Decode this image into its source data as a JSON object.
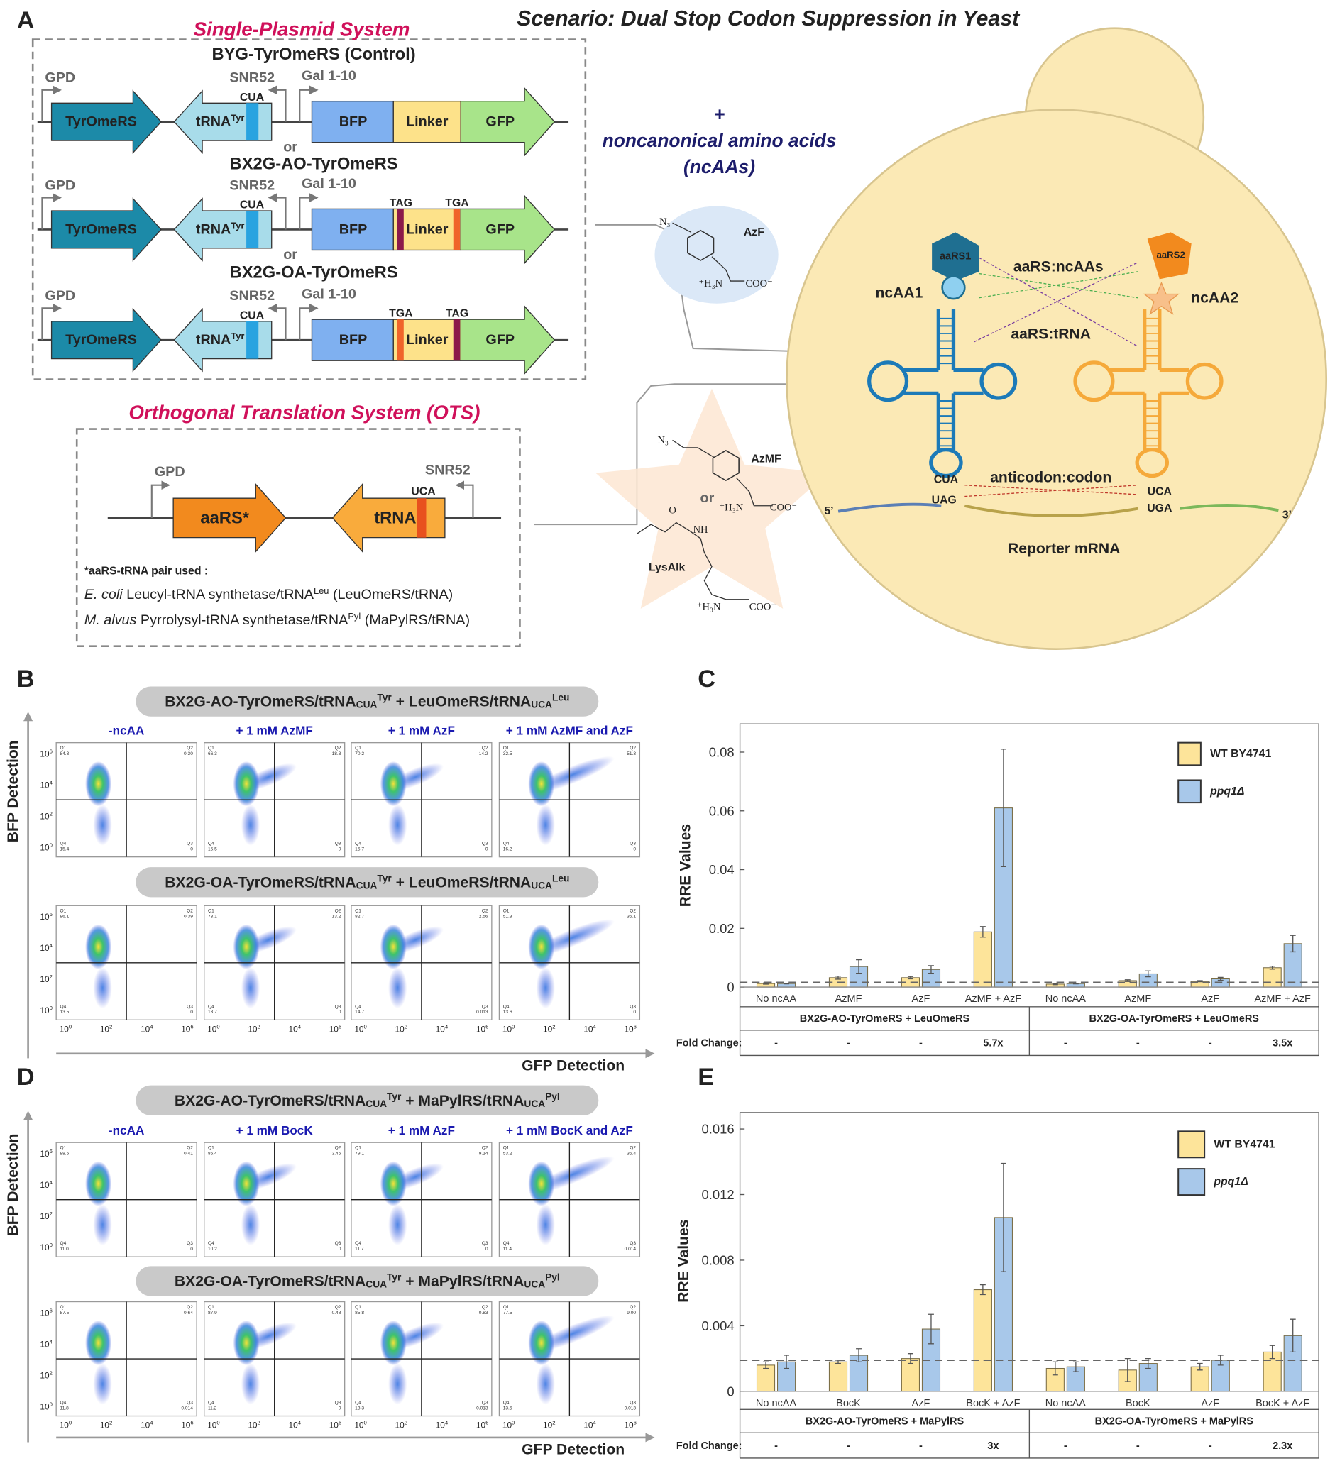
{
  "panel_a": {
    "letter": "A",
    "scenario": "Scenario: Dual Stop Codon Suppression in Yeast",
    "single_plasmid": {
      "title": "Single-Plasmid System",
      "constructs": [
        {
          "name": "BYG-TyrOmeRS (Control)",
          "codons": []
        },
        {
          "name": "BX2G-AO-TyrOmeRS",
          "codons": [
            {
              "label": "TAG",
              "color": "#8b1a4a"
            },
            {
              "label": "TGA",
              "color": "#f0642a"
            }
          ]
        },
        {
          "name": "BX2G-OA-TyrOmeRS",
          "codons": [
            {
              "label": "TGA",
              "color": "#f0642a"
            },
            {
              "label": "TAG",
              "color": "#8b1a4a"
            }
          ]
        }
      ],
      "or": "or",
      "promoters": [
        "GPD",
        "SNR52",
        "Gal 1-10"
      ],
      "genes": {
        "aars": "TyrOmeRS",
        "trna": "tRNA",
        "trna_sup": "Tyr",
        "anticodon": "CUA",
        "bfp": "BFP",
        "linker": "Linker",
        "gfp": "GFP"
      }
    },
    "ncaa": {
      "plus": "+",
      "line1": "noncanonical amino acids",
      "line2": "(ncAAs)",
      "azf": "AzF",
      "azmf": "AzMF",
      "or": "or",
      "lysalk": "LysAlk",
      "n3": "N₃",
      "amine": "⁺H₃N",
      "carboxyl": "COO⁻",
      "o": "O",
      "nh": "NH"
    },
    "ots": {
      "title": "Orthogonal Translation System (OTS)",
      "promoter1": "GPD",
      "promoter2": "SNR52",
      "aars": "aaRS*",
      "trna": "tRNA",
      "anticodon": "UCA",
      "note": "*aaRS-tRNA pair used :",
      "pairs": [
        {
          "species": "E. coli",
          "text": " Leucyl-tRNA synthetase/tRNA",
          "sup": "Leu",
          "tail": " (LeuOmeRS/tRNA)"
        },
        {
          "species": "M. alvus",
          "text": " Pyrrolysyl-tRNA synthetase/tRNA",
          "sup": "Pyl",
          "tail": " (MaPylRS/tRNA)"
        }
      ]
    },
    "cell": {
      "aars1": "aaRS1",
      "aars2": "aaRS2",
      "ncaa1": "ncAA1",
      "ncaa2": "ncAA2",
      "aars_ncaas": "aaRS:ncAAs",
      "aars_trna": "aaRS:tRNA",
      "anticodon_codon": "anticodon:codon",
      "anticodon1": "CUA",
      "anticodon2": "UCA",
      "codon1": "UAG",
      "codon2": "UGA",
      "five": "5’",
      "three": "3’",
      "mrna": "Reporter mRNA"
    }
  },
  "flow_axis_ticks": [
    {
      "base": "10",
      "exp": "0"
    },
    {
      "base": "10",
      "exp": "2"
    },
    {
      "base": "10",
      "exp": "4"
    },
    {
      "base": "10",
      "exp": "6"
    }
  ],
  "quadrant_names": [
    "Q1",
    "Q2",
    "Q3",
    "Q4"
  ],
  "flow": [
    {
      "letter": "B",
      "y_label": "BFP Detection",
      "x_label": "GFP Detection",
      "headers": [
        "-ncAA",
        "+ 1 mM AzMF",
        "+ 1 mM AzF",
        "+ 1 mM AzMF and AzF"
      ],
      "rows": [
        {
          "title": {
            "a": "BX2G-AO-TyrOmeRS/tRNA",
            "a_sub": "CUA",
            "a_sup": "Tyr",
            "b": " + LeuOmeRS/tRNA",
            "b_sub": "UCA",
            "b_sup": "Leu"
          },
          "plots": [
            [
              "84.3",
              "0.30",
              "0",
              "15.4"
            ],
            [
              "66.3",
              "18.3",
              "0",
              "15.5"
            ],
            [
              "70.2",
              "14.2",
              "0",
              "15.7"
            ],
            [
              "32.5",
              "51.3",
              "0",
              "16.2"
            ]
          ]
        },
        {
          "title": {
            "a": "BX2G-OA-TyrOmeRS/tRNA",
            "a_sub": "CUA",
            "a_sup": "Tyr",
            "b": " + LeuOmeRS/tRNA",
            "b_sub": "UCA",
            "b_sup": "Leu"
          },
          "plots": [
            [
              "86.1",
              "0.39",
              "0",
              "13.5"
            ],
            [
              "73.1",
              "13.2",
              "0",
              "13.7"
            ],
            [
              "82.7",
              "2.56",
              "0.013",
              "14.7"
            ],
            [
              "51.3",
              "35.1",
              "0",
              "13.6"
            ]
          ]
        }
      ]
    },
    {
      "letter": "D",
      "y_label": "BFP Detection",
      "x_label": "GFP Detection",
      "headers": [
        "-ncAA",
        "+ 1 mM BocK",
        "+ 1 mM AzF",
        "+ 1 mM BocK and AzF"
      ],
      "rows": [
        {
          "title": {
            "a": "BX2G-AO-TyrOmeRS/tRNA",
            "a_sub": "CUA",
            "a_sup": "Tyr",
            "b": " + MaPylRS/tRNA",
            "b_sub": "UCA",
            "b_sup": "Pyl"
          },
          "plots": [
            [
              "88.5",
              "0.41",
              "0",
              "11.0"
            ],
            [
              "86.4",
              "3.45",
              "0",
              "10.2"
            ],
            [
              "79.1",
              "9.14",
              "0",
              "11.7"
            ],
            [
              "53.2",
              "35.4",
              "0.014",
              "11.4"
            ]
          ]
        },
        {
          "title": {
            "a": "BX2G-OA-TyrOmeRS/tRNA",
            "a_sub": "CUA",
            "a_sup": "Tyr",
            "b": " + MaPylRS/tRNA",
            "b_sub": "UCA",
            "b_sup": "Pyl"
          },
          "plots": [
            [
              "87.5",
              "0.64",
              "0.014",
              "11.8"
            ],
            [
              "87.9",
              "0.48",
              "0",
              "11.2"
            ],
            [
              "85.8",
              "0.83",
              "0.013",
              "13.3"
            ],
            [
              "77.5",
              "9.00",
              "0.013",
              "13.5"
            ]
          ]
        }
      ]
    }
  ],
  "chart_data": [
    {
      "type": "bar",
      "letter": "C",
      "y_label": "RRE Values",
      "categories": [
        "No ncAA",
        "AzMF",
        "AzF",
        "AzMF + AzF",
        "No ncAA",
        "AzMF",
        "AzF",
        "AzMF + AzF"
      ],
      "groups": [
        "BX2G-AO-TyrOmeRS + LeuOmeRS",
        "BX2G-OA-TyrOmeRS + LeuOmeRS"
      ],
      "fold_label": "Fold Change:",
      "fold_changes": [
        "-",
        "-",
        "-",
        "5.7x",
        "-",
        "-",
        "-",
        "3.5x"
      ],
      "series": [
        {
          "name": "WT BY4741",
          "color": "#fde49a",
          "values": [
            0.0012,
            0.0032,
            0.0032,
            0.0188,
            0.001,
            0.0022,
            0.002,
            0.0066
          ],
          "errors": [
            0.0002,
            0.0005,
            0.0004,
            0.0018,
            0.0002,
            0.0003,
            0.0002,
            0.0005
          ]
        },
        {
          "name": "ppq1Δ",
          "color": "#a8c8ea",
          "values": [
            0.0012,
            0.007,
            0.006,
            0.061,
            0.0012,
            0.0045,
            0.0028,
            0.0148
          ],
          "errors": [
            0.0001,
            0.0023,
            0.0013,
            0.02,
            0.0001,
            0.001,
            0.0005,
            0.0028
          ]
        }
      ],
      "threshold": 0.0016,
      "ylim": [
        -0.0067,
        0.0896
      ],
      "yticks": [
        0,
        0.02,
        0.04,
        0.06,
        0.08
      ],
      "grid": false,
      "legend": "top-right"
    },
    {
      "type": "bar",
      "letter": "E",
      "y_label": "RRE Values",
      "categories": [
        "No ncAA",
        "BocK",
        "AzF",
        "BocK + AzF",
        "No ncAA",
        "BocK",
        "AzF",
        "BocK + AzF"
      ],
      "groups": [
        "BX2G-AO-TyrOmeRS + MaPylRS",
        "BX2G-OA-TyrOmeRS + MaPylRS"
      ],
      "fold_label": "Fold Change:",
      "fold_changes": [
        "-",
        "-",
        "-",
        "3x",
        "-",
        "-",
        "-",
        "2.3x"
      ],
      "series": [
        {
          "name": "WT BY4741",
          "color": "#fde49a",
          "values": [
            0.0016,
            0.0018,
            0.002,
            0.0062,
            0.0014,
            0.0013,
            0.0015,
            0.0024
          ],
          "errors": [
            0.0002,
            0.0001,
            0.0003,
            0.0003,
            0.0004,
            0.0007,
            0.0002,
            0.0004
          ]
        },
        {
          "name": "ppq1Δ",
          "color": "#a8c8ea",
          "values": [
            0.0018,
            0.0022,
            0.0038,
            0.0106,
            0.0015,
            0.0017,
            0.0019,
            0.0034
          ],
          "errors": [
            0.0004,
            0.0004,
            0.0009,
            0.0033,
            0.0003,
            0.0003,
            0.0003,
            0.001
          ]
        }
      ],
      "threshold": 0.0019,
      "ylim": [
        -0.0011,
        0.017
      ],
      "yticks": [
        0,
        0.004,
        0.008,
        0.012,
        0.016
      ],
      "grid": false,
      "legend": "top-right"
    }
  ]
}
